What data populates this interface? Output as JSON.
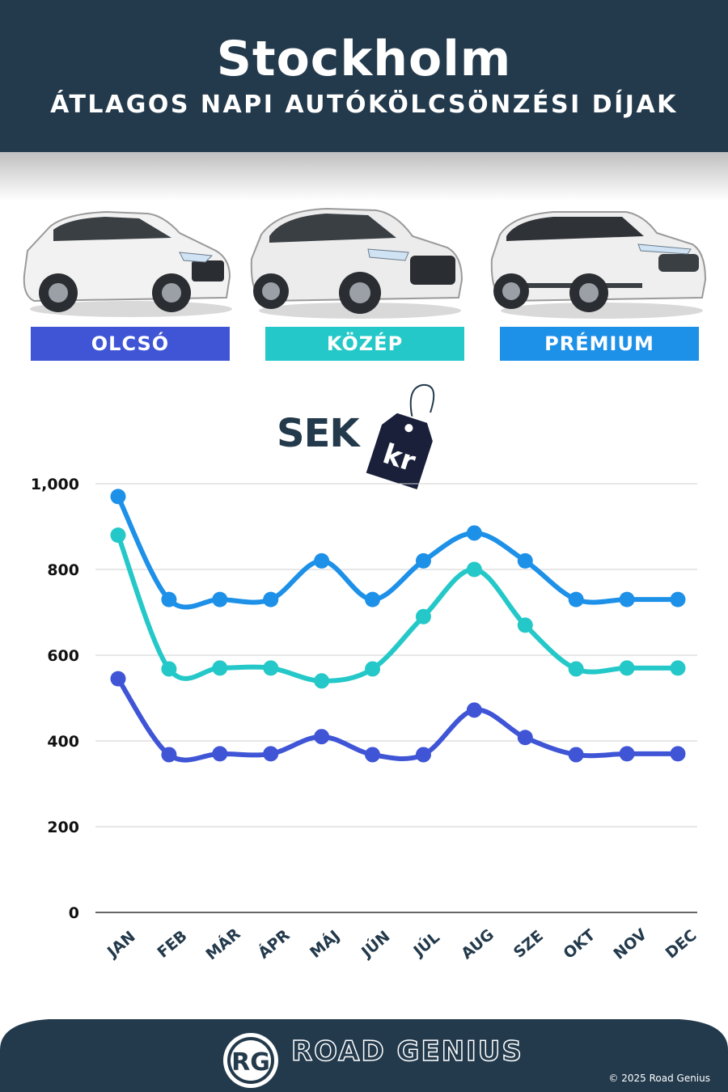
{
  "header": {
    "title": "Stockholm",
    "subtitle": "ÁTLAGOS NAPI AUTÓKÖLCSÖNZÉSI DÍJAK"
  },
  "categories": [
    {
      "label": "OLCSÓ",
      "color": "#3f55d6"
    },
    {
      "label": "KÖZÉP",
      "color": "#25c8c8"
    },
    {
      "label": "PRÉMIUM",
      "color": "#1d90e8"
    }
  ],
  "currency": {
    "code": "SEK",
    "symbol": "kr"
  },
  "chart_data": {
    "type": "line",
    "x": [
      "JAN",
      "FEB",
      "MÁR",
      "ÁPR",
      "MÁJ",
      "JÚN",
      "JÚL",
      "AUG",
      "SZE",
      "OKT",
      "NOV",
      "DEC"
    ],
    "ylim": [
      0,
      1000
    ],
    "yticks": [
      "0",
      "200",
      "400",
      "600",
      "800",
      "1,000"
    ],
    "ytick_values": [
      0,
      200,
      400,
      600,
      800,
      1000
    ],
    "grid": true,
    "series": [
      {
        "color": "#1d90e8",
        "values": [
          970,
          730,
          730,
          730,
          820,
          730,
          820,
          885,
          820,
          730,
          730,
          730
        ]
      },
      {
        "color": "#25c8c8",
        "values": [
          880,
          568,
          570,
          570,
          540,
          568,
          690,
          800,
          670,
          568,
          570,
          570
        ]
      },
      {
        "color": "#3f55d6",
        "values": [
          545,
          368,
          370,
          370,
          410,
          368,
          368,
          472,
          408,
          368,
          370,
          370
        ]
      }
    ]
  },
  "footer": {
    "logo_text": "RG",
    "brand": "ROAD GENIUS",
    "copyright": "© 2025 Road Genius",
    "color": "#233a4c"
  }
}
